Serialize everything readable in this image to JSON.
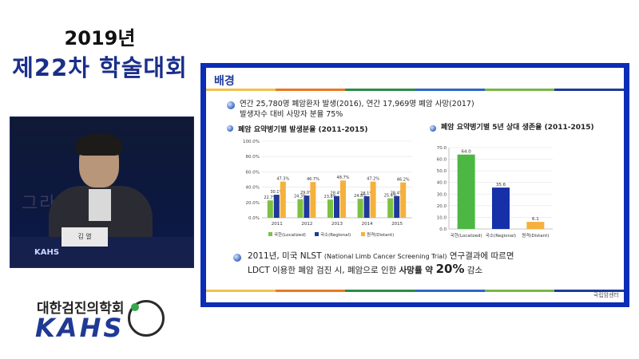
{
  "conference": {
    "year_title": "2019년",
    "event_title": "제22차 학술대회"
  },
  "video": {
    "backdrop_text": "그라 룸",
    "nameplate": "김 열",
    "podium_logo": "KAHS"
  },
  "org": {
    "name_ko": "대한검진의학회",
    "name_en": "KAHS"
  },
  "slide": {
    "title": "배경",
    "bullet1_line1": "연간 25,780명 폐암환자 발생(2016), 연간 17,969명 폐암 사망(2017)",
    "bullet1_line2": "발생자수 대비 사망자 분율 75%",
    "left_chart_title": "폐암 요약병기별 발생분율 (2011-2015)",
    "right_chart_title": "폐암 요약병기별 5년 상대 생존율 (2011-2015)",
    "bullet2_line1_a": "2011년, 미국 NLST ",
    "bullet2_line1_b": "(National Limb Cancer Screening Trial)",
    "bullet2_line1_c": " 연구결과에 따르면",
    "bullet2_line2_a": "LDCT 이용한 폐암 검진 시, 폐암으로 인한 ",
    "bullet2_line2_b": "사망률 약 ",
    "bullet2_line2_c": "20%",
    "bullet2_line2_d": " 감소",
    "footer_logo": "국립암센터",
    "rule_colors": [
      "#f2c14e",
      "#e87a23",
      "#2b8c4a",
      "#2b66c9",
      "#7ab648",
      "#1e3b9b"
    ]
  },
  "chart_data": [
    {
      "type": "bar",
      "categories": [
        "2011",
        "2012",
        "2013",
        "2014",
        "2015"
      ],
      "series": [
        {
          "name": "국한(Localized)",
          "color": "#7cc143",
          "values": [
            22.7,
            24.3,
            23.8,
            24.8,
            25.4
          ]
        },
        {
          "name": "국소(Regional)",
          "color": "#1f3a9a",
          "values": [
            30.1,
            29.0,
            28.4,
            28.1,
            28.4
          ]
        },
        {
          "name": "원격(Distant)",
          "color": "#f5b13c",
          "values": [
            47.3,
            46.7,
            48.7,
            47.2,
            46.2
          ]
        }
      ],
      "value_labels": [
        [
          "22.7%",
          "30.1%",
          "47.3%"
        ],
        [
          "24.3%",
          "29.0%",
          "46.7%"
        ],
        [
          "23.8%",
          "28.4%",
          "48.7%"
        ],
        [
          "24.8%",
          "28.1%",
          "47.2%"
        ],
        [
          "25.4%",
          "28.4%",
          "46.2%"
        ]
      ],
      "yticks": [
        "0.0%",
        "20.0%",
        "40.0%",
        "60.0%",
        "80.0%",
        "100.0%"
      ],
      "ylim": [
        0,
        100
      ],
      "legend": "bottom"
    },
    {
      "type": "bar",
      "categories": [
        "국한(Localized)",
        "국소(Regional)",
        "원격(Distant)"
      ],
      "values": [
        64.0,
        35.6,
        6.1
      ],
      "value_labels": [
        "64.0",
        "35.6",
        "6.1"
      ],
      "colors": [
        "#4cb843",
        "#1530a8",
        "#f5b13c"
      ],
      "yticks": [
        "0.0",
        "10.0",
        "20.0",
        "30.0",
        "40.0",
        "50.0",
        "60.0",
        "70.0"
      ],
      "ylim": [
        0,
        70
      ]
    }
  ]
}
